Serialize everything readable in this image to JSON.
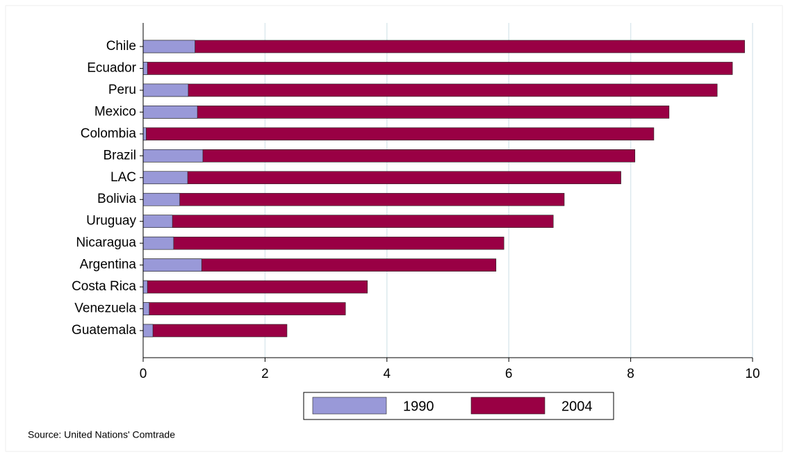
{
  "chart_data": {
    "type": "bar",
    "orientation": "horizontal",
    "mode": "overlap",
    "categories": [
      "Chile",
      "Ecuador",
      "Peru",
      "Mexico",
      "Colombia",
      "Brazil",
      "LAC",
      "Bolivia",
      "Uruguay",
      "Nicaragua",
      "Argentina",
      "Costa Rica",
      "Venezuela",
      "Guatemala"
    ],
    "series": [
      {
        "name": "1990",
        "color": "#9999d8",
        "values": [
          0.85,
          0.07,
          0.74,
          0.89,
          0.05,
          0.98,
          0.73,
          0.6,
          0.48,
          0.5,
          0.96,
          0.07,
          0.1,
          0.16
        ]
      },
      {
        "name": "2004",
        "color": "#990044",
        "values": [
          9.87,
          9.67,
          9.42,
          8.63,
          8.38,
          8.07,
          7.84,
          6.91,
          6.73,
          5.92,
          5.79,
          3.68,
          3.32,
          2.36
        ]
      }
    ],
    "xlim": [
      0,
      10
    ],
    "xticks": [
      0,
      2,
      4,
      6,
      8,
      10
    ],
    "grid": true,
    "legend": "bottom",
    "source": "Source: United Nations' Comtrade"
  }
}
